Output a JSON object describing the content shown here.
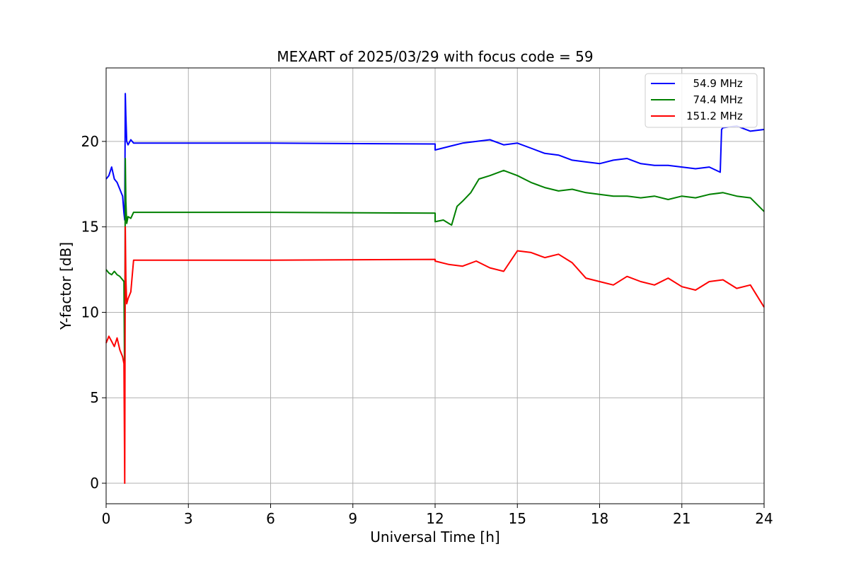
{
  "chart_data": {
    "type": "line",
    "title": "MEXART of 2025/03/29 with focus code = 59",
    "xlabel": "Universal Time [h]",
    "ylabel": "Y-factor [dB]",
    "xlim": [
      0,
      24
    ],
    "ylim": [
      -1.2,
      24.3
    ],
    "xticks": [
      0,
      3,
      6,
      9,
      12,
      15,
      18,
      21,
      24
    ],
    "yticks": [
      0,
      5,
      10,
      15,
      20
    ],
    "grid": true,
    "legend_position": "top-right",
    "series": [
      {
        "name": "  54.9 MHz",
        "color": "#0000ff",
        "x": [
          0.0,
          0.1,
          0.2,
          0.3,
          0.4,
          0.5,
          0.6,
          0.65,
          0.68,
          0.7,
          0.72,
          0.75,
          0.8,
          0.9,
          1.0,
          6.0,
          12.0,
          12.0,
          12.5,
          13.0,
          13.5,
          14.0,
          14.5,
          15.0,
          15.5,
          16.0,
          16.5,
          17.0,
          17.5,
          18.0,
          18.5,
          19.0,
          19.5,
          20.0,
          20.5,
          21.0,
          21.5,
          22.0,
          22.4,
          22.45,
          22.5,
          23.0,
          23.5,
          24.0
        ],
        "y": [
          17.8,
          18.0,
          18.5,
          17.8,
          17.6,
          17.2,
          16.8,
          15.8,
          15.4,
          22.8,
          21.5,
          20.0,
          19.8,
          20.1,
          19.9,
          19.9,
          19.85,
          19.5,
          19.7,
          19.9,
          20.0,
          20.1,
          19.8,
          19.9,
          19.6,
          19.3,
          19.2,
          18.9,
          18.8,
          18.7,
          18.9,
          19.0,
          18.7,
          18.6,
          18.6,
          18.5,
          18.4,
          18.5,
          18.2,
          20.7,
          20.8,
          20.9,
          20.6,
          20.7
        ]
      },
      {
        "name": "  74.4 MHz",
        "color": "#008000",
        "x": [
          0.0,
          0.1,
          0.2,
          0.3,
          0.4,
          0.5,
          0.6,
          0.65,
          0.68,
          0.7,
          0.72,
          0.75,
          0.8,
          0.9,
          1.0,
          6.0,
          12.0,
          12.0,
          12.3,
          12.6,
          12.8,
          13.0,
          13.3,
          13.6,
          14.0,
          14.5,
          15.0,
          15.5,
          16.0,
          16.5,
          17.0,
          17.5,
          18.0,
          18.5,
          19.0,
          19.5,
          20.0,
          20.5,
          21.0,
          21.5,
          22.0,
          22.5,
          23.0,
          23.5,
          24.0
        ],
        "y": [
          12.5,
          12.3,
          12.2,
          12.4,
          12.2,
          12.1,
          11.9,
          11.8,
          5.0,
          19.0,
          16.5,
          15.2,
          15.6,
          15.5,
          15.85,
          15.85,
          15.8,
          15.3,
          15.4,
          15.1,
          16.2,
          16.5,
          17.0,
          17.8,
          18.0,
          18.3,
          18.0,
          17.6,
          17.3,
          17.1,
          17.2,
          17.0,
          16.9,
          16.8,
          16.8,
          16.7,
          16.8,
          16.6,
          16.8,
          16.7,
          16.9,
          17.0,
          16.8,
          16.7,
          15.9
        ]
      },
      {
        "name": "151.2 MHz",
        "color": "#ff0000",
        "x": [
          0.0,
          0.1,
          0.2,
          0.3,
          0.4,
          0.5,
          0.6,
          0.65,
          0.68,
          0.7,
          0.72,
          0.75,
          0.8,
          0.9,
          1.0,
          6.0,
          12.0,
          12.0,
          12.5,
          13.0,
          13.5,
          14.0,
          14.5,
          15.0,
          15.5,
          16.0,
          16.5,
          17.0,
          17.5,
          18.0,
          18.5,
          19.0,
          19.5,
          20.0,
          20.5,
          21.0,
          21.5,
          22.0,
          22.5,
          23.0,
          23.5,
          24.0
        ],
        "y": [
          8.2,
          8.6,
          8.3,
          8.0,
          8.5,
          7.8,
          7.4,
          7.0,
          0.0,
          15.0,
          12.0,
          10.5,
          10.8,
          11.2,
          13.05,
          13.05,
          13.1,
          13.0,
          12.8,
          12.7,
          13.0,
          12.6,
          12.4,
          13.6,
          13.5,
          13.2,
          13.4,
          12.9,
          12.0,
          11.8,
          11.6,
          12.1,
          11.8,
          11.6,
          12.0,
          11.5,
          11.3,
          11.8,
          11.9,
          11.4,
          11.6,
          10.3
        ]
      }
    ]
  }
}
